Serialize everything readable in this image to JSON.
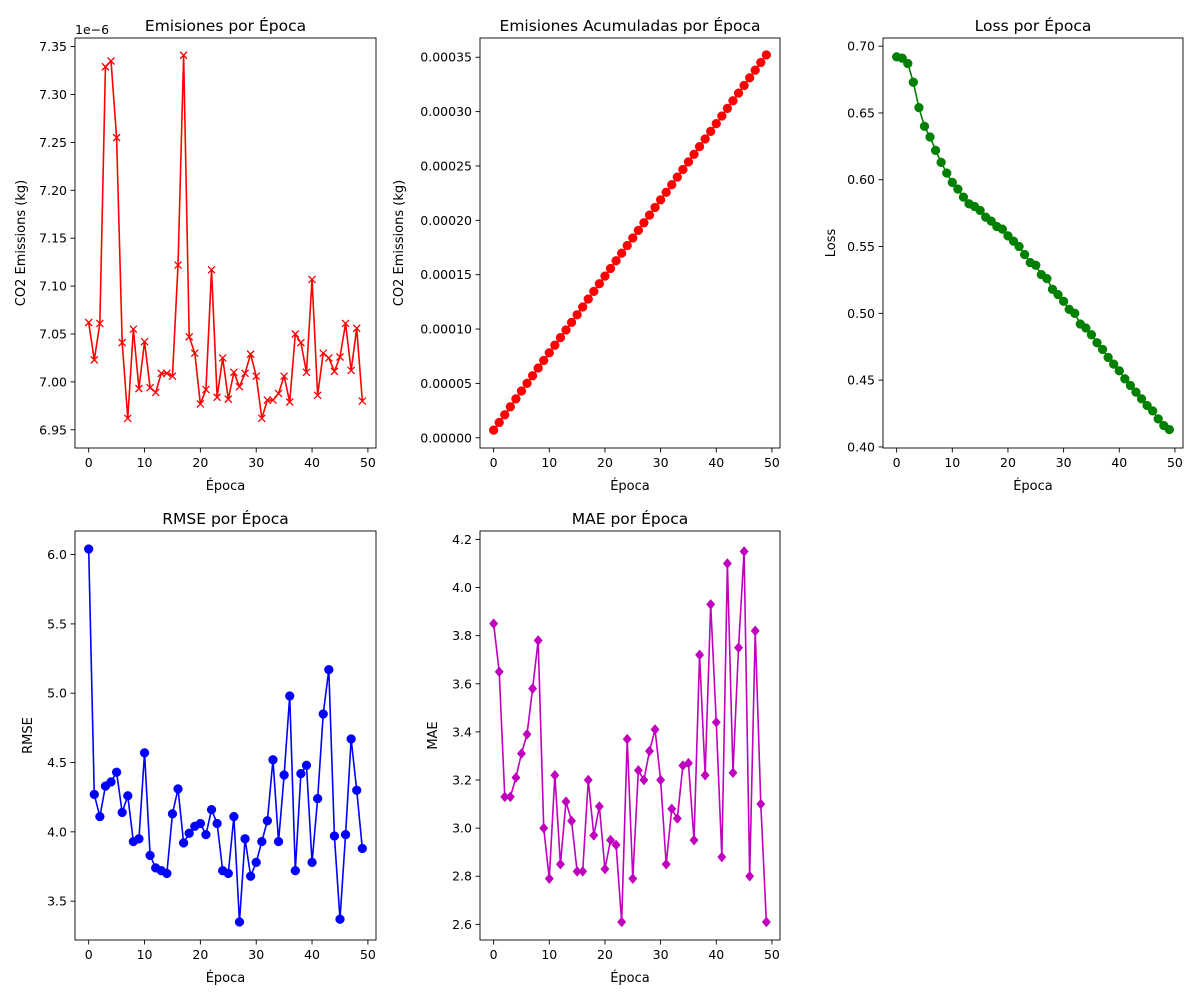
{
  "chart_data": [
    {
      "type": "line",
      "title": "Emisiones por Época",
      "xlabel": "Época",
      "ylabel": "CO2 Emissions (kg)",
      "offset_text": "1e−6",
      "color": "#ff0000",
      "marker": "x",
      "xlim": [
        -2.45,
        51.45
      ],
      "ylim": [
        6.931,
        7.359
      ],
      "xticks": [
        0,
        10,
        20,
        30,
        40,
        50
      ],
      "yticks": [
        6.95,
        7.0,
        7.05,
        7.1,
        7.15,
        7.2,
        7.25,
        7.3,
        7.35
      ],
      "ytick_labels": [
        "6.95",
        "7.00",
        "7.05",
        "7.10",
        "7.15",
        "7.20",
        "7.25",
        "7.30",
        "7.35"
      ],
      "grid": false,
      "x": [
        0,
        1,
        2,
        3,
        4,
        5,
        6,
        7,
        8,
        9,
        10,
        11,
        12,
        13,
        14,
        15,
        16,
        17,
        18,
        19,
        20,
        21,
        22,
        23,
        24,
        25,
        26,
        27,
        28,
        29,
        30,
        31,
        32,
        33,
        34,
        35,
        36,
        37,
        38,
        39,
        40,
        41,
        42,
        43,
        44,
        45,
        46,
        47,
        48,
        49
      ],
      "y": [
        7.062,
        7.023,
        7.061,
        7.329,
        7.335,
        7.255,
        7.041,
        6.962,
        7.055,
        6.993,
        7.042,
        6.994,
        6.989,
        7.009,
        7.009,
        7.006,
        7.122,
        7.341,
        7.047,
        7.03,
        6.977,
        6.992,
        7.117,
        6.984,
        7.025,
        6.982,
        7.01,
        6.995,
        7.009,
        7.029,
        7.006,
        6.962,
        6.981,
        6.981,
        6.988,
        7.006,
        6.979,
        7.05,
        7.041,
        7.01,
        7.107,
        6.986,
        7.03,
        7.025,
        7.011,
        7.026,
        7.061,
        7.012,
        7.056,
        6.98
      ]
    },
    {
      "type": "line",
      "title": "Emisiones Acumuladas por Época",
      "xlabel": "Época",
      "ylabel": "CO2 Emissions (kg)",
      "color": "#ff0000",
      "marker": "o",
      "xlim": [
        -2.45,
        51.45
      ],
      "ylim": [
        -9.4e-06,
        0.0003677
      ],
      "xticks": [
        0,
        10,
        20,
        30,
        40,
        50
      ],
      "yticks": [
        0,
        5e-05,
        0.0001,
        0.00015,
        0.0002,
        0.00025,
        0.0003,
        0.00035
      ],
      "ytick_labels": [
        "0.00000",
        "0.00005",
        "0.00010",
        "0.00015",
        "0.00020",
        "0.00025",
        "0.00030",
        "0.00035"
      ],
      "grid": false,
      "x": [
        0,
        1,
        2,
        3,
        4,
        5,
        6,
        7,
        8,
        9,
        10,
        11,
        12,
        13,
        14,
        15,
        16,
        17,
        18,
        19,
        20,
        21,
        22,
        23,
        24,
        25,
        26,
        27,
        28,
        29,
        30,
        31,
        32,
        33,
        34,
        35,
        36,
        37,
        38,
        39,
        40,
        41,
        42,
        43,
        44,
        45,
        46,
        47,
        48,
        49
      ],
      "y": [
        7.06e-06,
        1.408e-05,
        2.114e-05,
        2.847e-05,
        3.581e-05,
        4.306e-05,
        5.01e-05,
        5.706e-05,
        6.412e-05,
        7.111e-05,
        7.815e-05,
        8.514e-05,
        9.213e-05,
        9.914e-05,
        0.00010615,
        0.00011316,
        0.00012028,
        0.00012762,
        0.00013467,
        0.0001417,
        0.00014868,
        0.00015567,
        0.00016279,
        0.00016977,
        0.0001768,
        0.00018378,
        0.00019079,
        0.00019779,
        0.0002048,
        0.00021183,
        0.00021883,
        0.00022579,
        0.00023277,
        0.00023975,
        0.00024674,
        0.00025375,
        0.00026073,
        0.00026778,
        0.00027482,
        0.00028183,
        0.00028894,
        0.00029593,
        0.00030296,
        0.00030998,
        0.00031699,
        0.00032402,
        0.00033108,
        0.00033809,
        0.00034515,
        0.00035213
      ]
    },
    {
      "type": "line",
      "title": "Loss por Época",
      "xlabel": "Época",
      "ylabel": "Loss",
      "color": "#008000",
      "marker": "o",
      "xlim": [
        -2.45,
        51.45
      ],
      "ylim": [
        0.3992,
        0.7061
      ],
      "xticks": [
        0,
        10,
        20,
        30,
        40,
        50
      ],
      "yticks": [
        0.4,
        0.45,
        0.5,
        0.55,
        0.6,
        0.65,
        0.7
      ],
      "ytick_labels": [
        "0.40",
        "0.45",
        "0.50",
        "0.55",
        "0.60",
        "0.65",
        "0.70"
      ],
      "grid": false,
      "x": [
        0,
        1,
        2,
        3,
        4,
        5,
        6,
        7,
        8,
        9,
        10,
        11,
        12,
        13,
        14,
        15,
        16,
        17,
        18,
        19,
        20,
        21,
        22,
        23,
        24,
        25,
        26,
        27,
        28,
        29,
        30,
        31,
        32,
        33,
        34,
        35,
        36,
        37,
        38,
        39,
        40,
        41,
        42,
        43,
        44,
        45,
        46,
        47,
        48,
        49
      ],
      "y": [
        0.692,
        0.691,
        0.687,
        0.673,
        0.654,
        0.64,
        0.632,
        0.622,
        0.613,
        0.605,
        0.598,
        0.593,
        0.587,
        0.582,
        0.58,
        0.577,
        0.572,
        0.569,
        0.565,
        0.563,
        0.558,
        0.554,
        0.55,
        0.544,
        0.538,
        0.536,
        0.529,
        0.526,
        0.518,
        0.514,
        0.509,
        0.503,
        0.5,
        0.492,
        0.489,
        0.484,
        0.478,
        0.473,
        0.467,
        0.462,
        0.457,
        0.451,
        0.446,
        0.441,
        0.436,
        0.431,
        0.427,
        0.421,
        0.416,
        0.413
      ]
    },
    {
      "type": "line",
      "title": "RMSE por Época",
      "xlabel": "Época",
      "ylabel": "RMSE",
      "color": "#0000ff",
      "marker": "o",
      "xlim": [
        -2.45,
        51.45
      ],
      "ylim": [
        3.22,
        6.17
      ],
      "xticks": [
        0,
        10,
        20,
        30,
        40,
        50
      ],
      "yticks": [
        3.5,
        4.0,
        4.5,
        5.0,
        5.5,
        6.0
      ],
      "ytick_labels": [
        "3.5",
        "4.0",
        "4.5",
        "5.0",
        "5.5",
        "6.0"
      ],
      "grid": false,
      "x": [
        0,
        1,
        2,
        3,
        4,
        5,
        6,
        7,
        8,
        9,
        10,
        11,
        12,
        13,
        14,
        15,
        16,
        17,
        18,
        19,
        20,
        21,
        22,
        23,
        24,
        25,
        26,
        27,
        28,
        29,
        30,
        31,
        32,
        33,
        34,
        35,
        36,
        37,
        38,
        39,
        40,
        41,
        42,
        43,
        44,
        45,
        46,
        47,
        48,
        49
      ],
      "y": [
        6.04,
        4.27,
        4.11,
        4.33,
        4.36,
        4.43,
        4.14,
        4.26,
        3.93,
        3.95,
        4.57,
        3.83,
        3.74,
        3.72,
        3.7,
        4.13,
        4.31,
        3.92,
        3.99,
        4.04,
        4.06,
        3.98,
        4.16,
        4.06,
        3.72,
        3.7,
        4.11,
        3.35,
        3.95,
        3.68,
        3.78,
        3.93,
        4.08,
        4.52,
        3.93,
        4.41,
        4.98,
        3.72,
        4.42,
        4.48,
        3.78,
        4.24,
        4.85,
        5.17,
        3.97,
        3.37,
        3.98,
        4.67,
        4.3,
        3.88
      ]
    },
    {
      "type": "line",
      "title": "MAE por Época",
      "xlabel": "Época",
      "ylabel": "MAE",
      "color": "#bf00bf",
      "marker": "D",
      "xlim": [
        -2.45,
        51.45
      ],
      "ylim": [
        2.535,
        4.235
      ],
      "xticks": [
        0,
        10,
        20,
        30,
        40,
        50
      ],
      "yticks": [
        2.6,
        2.8,
        3.0,
        3.2,
        3.4,
        3.6,
        3.8,
        4.0,
        4.2
      ],
      "ytick_labels": [
        "2.6",
        "2.8",
        "3.0",
        "3.2",
        "3.4",
        "3.6",
        "3.8",
        "4.0",
        "4.2"
      ],
      "grid": false,
      "x": [
        0,
        1,
        2,
        3,
        4,
        5,
        6,
        7,
        8,
        9,
        10,
        11,
        12,
        13,
        14,
        15,
        16,
        17,
        18,
        19,
        20,
        21,
        22,
        23,
        24,
        25,
        26,
        27,
        28,
        29,
        30,
        31,
        32,
        33,
        34,
        35,
        36,
        37,
        38,
        39,
        40,
        41,
        42,
        43,
        44,
        45,
        46,
        47,
        48,
        49
      ],
      "y": [
        3.85,
        3.65,
        3.13,
        3.13,
        3.21,
        3.31,
        3.39,
        3.58,
        3.78,
        3.0,
        2.79,
        3.22,
        2.85,
        3.11,
        3.03,
        2.82,
        2.82,
        3.2,
        2.97,
        3.09,
        2.83,
        2.95,
        2.93,
        2.61,
        3.37,
        2.79,
        3.24,
        3.2,
        3.32,
        3.41,
        3.2,
        2.85,
        3.08,
        3.04,
        3.26,
        3.27,
        2.95,
        3.72,
        3.22,
        3.93,
        3.44,
        2.88,
        4.1,
        3.23,
        3.75,
        4.15,
        2.8,
        3.82,
        3.1,
        2.61
      ]
    }
  ]
}
